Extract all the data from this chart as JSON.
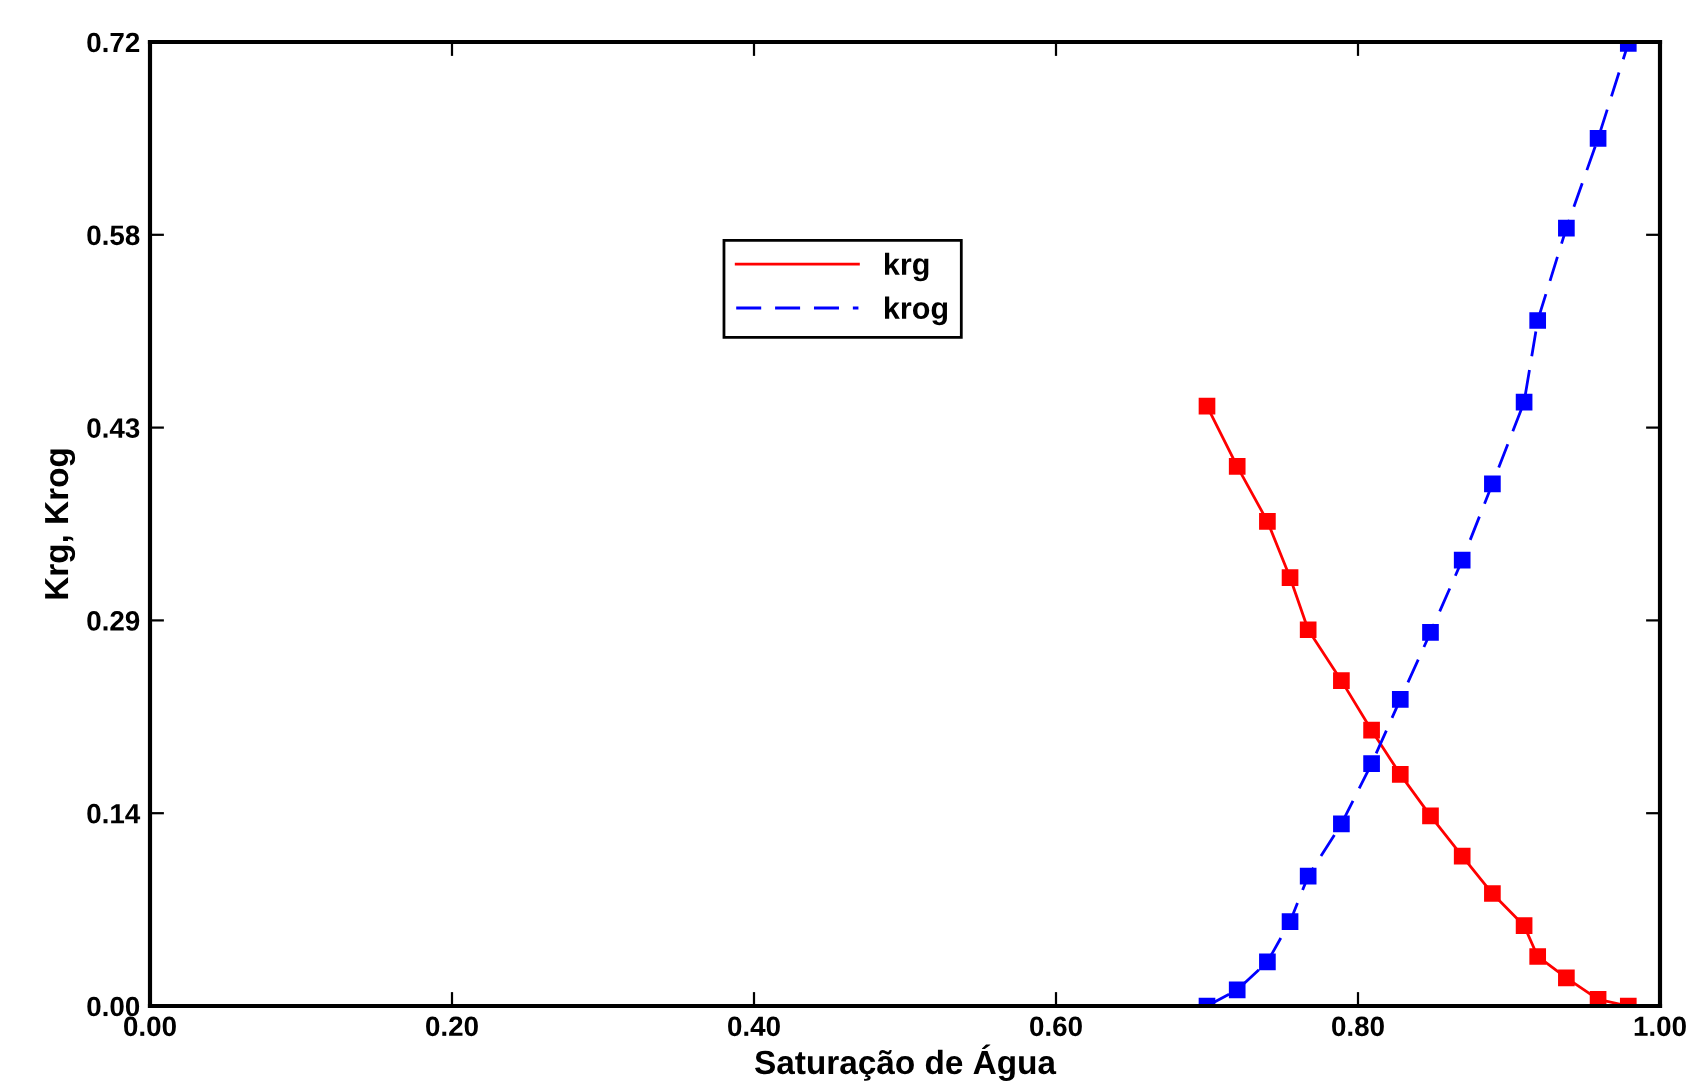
{
  "chart_data": {
    "type": "line",
    "xlabel": "Saturação de Água",
    "ylabel": "Krg, Krog",
    "x": [
      0.7,
      0.72,
      0.74,
      0.755,
      0.767,
      0.789,
      0.809,
      0.828,
      0.848,
      0.869,
      0.889,
      0.91,
      0.919,
      0.938,
      0.959,
      0.979
    ],
    "series": [
      {
        "name": "krg",
        "color": "#ff0000",
        "line_style": "solid",
        "marker": "square",
        "values": [
          0.448,
          0.403,
          0.362,
          0.32,
          0.281,
          0.243,
          0.206,
          0.173,
          0.142,
          0.112,
          0.084,
          0.06,
          0.037,
          0.021,
          0.005,
          0.0
        ]
      },
      {
        "name": "krog",
        "color": "#0000ff",
        "line_style": "dashed",
        "marker": "square",
        "values": [
          0.0,
          0.012,
          0.033,
          0.063,
          0.097,
          0.136,
          0.181,
          0.229,
          0.279,
          0.333,
          0.39,
          0.451,
          0.512,
          0.581,
          0.648,
          0.719
        ]
      }
    ],
    "xlim": [
      0,
      1
    ],
    "xticks": [
      {
        "value": 0,
        "label": "0.00"
      },
      {
        "value": 0.2,
        "label": "0.20"
      },
      {
        "value": 0.4,
        "label": "0.40"
      },
      {
        "value": 0.6,
        "label": "0.60"
      },
      {
        "value": 0.8,
        "label": "0.80"
      },
      {
        "value": 1,
        "label": "1.00"
      }
    ],
    "ylim": [
      0,
      0.72
    ],
    "yticks": [
      {
        "value": 0,
        "label": "0.00"
      },
      {
        "value": 0.144,
        "label": "0.14"
      },
      {
        "value": 0.288,
        "label": "0.29"
      },
      {
        "value": 0.432,
        "label": "0.43"
      },
      {
        "value": 0.576,
        "label": "0.58"
      },
      {
        "value": 0.72,
        "label": "0.72"
      }
    ],
    "grid": false,
    "legend": "top center"
  }
}
